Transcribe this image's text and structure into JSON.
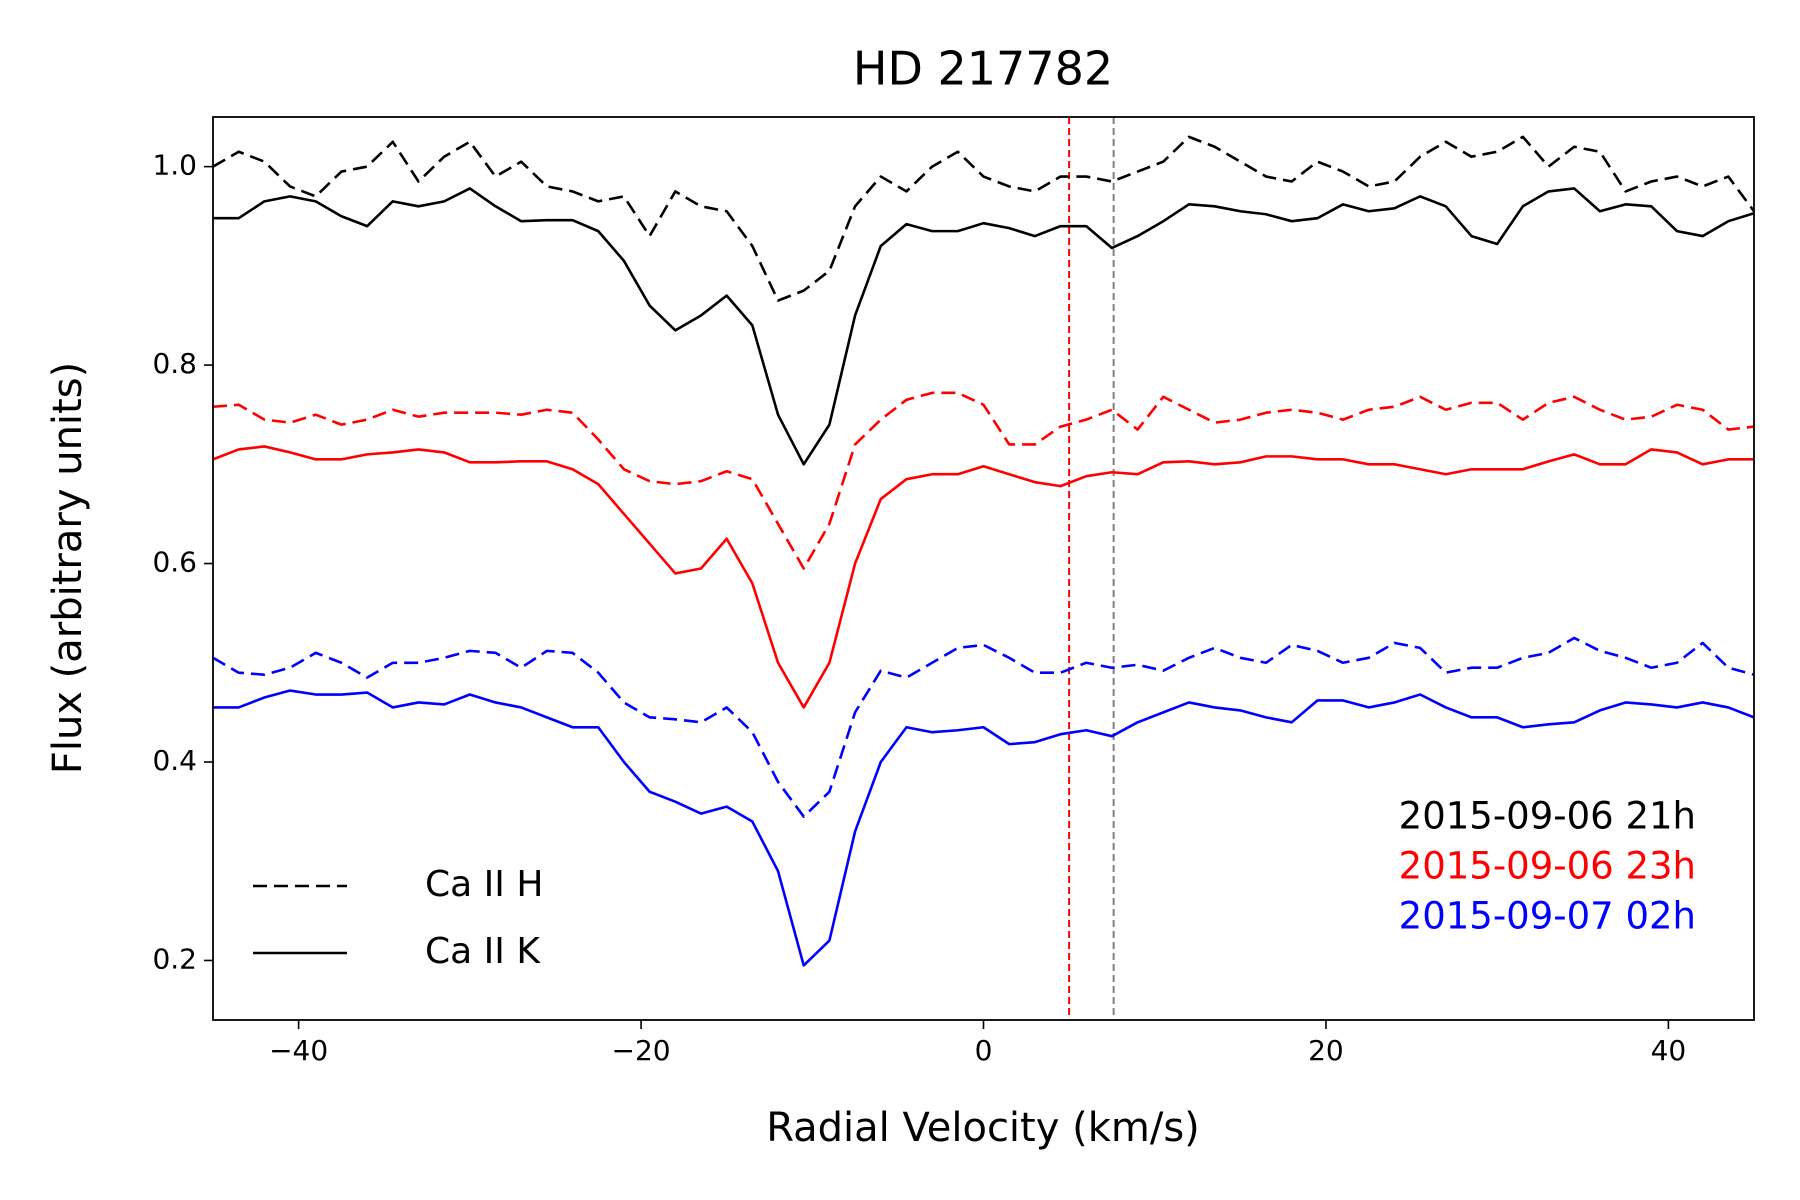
{
  "chart_data": {
    "type": "line",
    "title": "HD 217782",
    "xlabel": "Radial Velocity (km/s)",
    "ylabel": "Flux (arbitrary units)",
    "x": [
      -45,
      -43.5,
      -42,
      -40.5,
      -39,
      -37.5,
      -36,
      -34.5,
      -33,
      -31.5,
      -30,
      -28.5,
      -27,
      -25.5,
      -24,
      -22.5,
      -21,
      -19.5,
      -18,
      -16.5,
      -15,
      -13.5,
      -12,
      -10.5,
      -9,
      -7.5,
      -6,
      -4.5,
      -3,
      -1.5,
      0,
      1.5,
      3,
      4.5,
      6,
      7.5,
      9,
      10.5,
      12,
      13.5,
      15,
      16.5,
      18,
      19.5,
      21,
      22.5,
      24,
      25.5,
      27,
      28.5,
      30,
      31.5,
      33,
      34.5,
      36,
      37.5,
      39,
      40.5,
      42,
      43.5,
      45
    ],
    "series": [
      {
        "color": "black",
        "style": "dashed",
        "values": [
          1.0,
          1.015,
          1.005,
          0.98,
          0.97,
          0.995,
          1.0,
          1.025,
          0.985,
          1.01,
          1.025,
          0.99,
          1.005,
          0.98,
          0.975,
          0.965,
          0.97,
          0.93,
          0.975,
          0.96,
          0.955,
          0.92,
          0.865,
          0.875,
          0.895,
          0.96,
          0.99,
          0.975,
          1.0,
          1.015,
          0.99,
          0.98,
          0.975,
          0.99,
          0.99,
          0.985,
          0.995,
          1.005,
          1.03,
          1.02,
          1.005,
          0.99,
          0.985,
          1.005,
          0.995,
          0.98,
          0.985,
          1.01,
          1.025,
          1.01,
          1.015,
          1.03,
          1.0,
          1.02,
          1.015,
          0.975,
          0.985,
          0.99,
          0.98,
          0.99,
          0.955
        ]
      },
      {
        "color": "black",
        "style": "solid",
        "values": [
          0.948,
          0.948,
          0.965,
          0.97,
          0.965,
          0.95,
          0.94,
          0.965,
          0.96,
          0.965,
          0.978,
          0.96,
          0.945,
          0.946,
          0.946,
          0.935,
          0.905,
          0.86,
          0.835,
          0.85,
          0.87,
          0.84,
          0.75,
          0.7,
          0.74,
          0.85,
          0.92,
          0.942,
          0.935,
          0.935,
          0.943,
          0.938,
          0.93,
          0.94,
          0.94,
          0.918,
          0.93,
          0.945,
          0.962,
          0.96,
          0.955,
          0.952,
          0.945,
          0.948,
          0.962,
          0.955,
          0.958,
          0.97,
          0.96,
          0.93,
          0.922,
          0.96,
          0.975,
          0.978,
          0.955,
          0.962,
          0.96,
          0.935,
          0.93,
          0.945,
          0.953
        ]
      },
      {
        "color": "red",
        "style": "dashed",
        "values": [
          0.758,
          0.76,
          0.745,
          0.742,
          0.75,
          0.74,
          0.745,
          0.755,
          0.748,
          0.752,
          0.752,
          0.752,
          0.75,
          0.755,
          0.752,
          0.725,
          0.695,
          0.683,
          0.68,
          0.683,
          0.693,
          0.685,
          0.64,
          0.595,
          0.64,
          0.72,
          0.745,
          0.765,
          0.772,
          0.772,
          0.76,
          0.72,
          0.72,
          0.738,
          0.745,
          0.755,
          0.735,
          0.768,
          0.755,
          0.742,
          0.745,
          0.752,
          0.755,
          0.752,
          0.745,
          0.755,
          0.758,
          0.768,
          0.755,
          0.762,
          0.762,
          0.745,
          0.762,
          0.768,
          0.755,
          0.745,
          0.748,
          0.76,
          0.755,
          0.735,
          0.738
        ]
      },
      {
        "color": "red",
        "style": "solid",
        "values": [
          0.705,
          0.715,
          0.718,
          0.712,
          0.705,
          0.705,
          0.71,
          0.712,
          0.715,
          0.712,
          0.702,
          0.702,
          0.703,
          0.703,
          0.695,
          0.68,
          0.65,
          0.62,
          0.59,
          0.595,
          0.625,
          0.58,
          0.5,
          0.455,
          0.5,
          0.6,
          0.665,
          0.685,
          0.69,
          0.69,
          0.698,
          0.69,
          0.682,
          0.678,
          0.688,
          0.692,
          0.69,
          0.702,
          0.703,
          0.7,
          0.702,
          0.708,
          0.708,
          0.705,
          0.705,
          0.7,
          0.7,
          0.695,
          0.69,
          0.695,
          0.695,
          0.695,
          0.703,
          0.71,
          0.7,
          0.7,
          0.715,
          0.712,
          0.7,
          0.705,
          0.705
        ]
      },
      {
        "color": "blue",
        "style": "dashed",
        "values": [
          0.505,
          0.49,
          0.488,
          0.495,
          0.51,
          0.5,
          0.485,
          0.5,
          0.5,
          0.505,
          0.512,
          0.51,
          0.495,
          0.512,
          0.51,
          0.49,
          0.46,
          0.445,
          0.443,
          0.44,
          0.455,
          0.43,
          0.38,
          0.345,
          0.37,
          0.45,
          0.492,
          0.485,
          0.5,
          0.515,
          0.518,
          0.505,
          0.49,
          0.49,
          0.5,
          0.495,
          0.498,
          0.492,
          0.505,
          0.515,
          0.505,
          0.5,
          0.518,
          0.512,
          0.5,
          0.505,
          0.52,
          0.515,
          0.49,
          0.495,
          0.495,
          0.505,
          0.51,
          0.525,
          0.512,
          0.505,
          0.495,
          0.5,
          0.52,
          0.495,
          0.488
        ]
      },
      {
        "color": "blue",
        "style": "solid",
        "values": [
          0.455,
          0.455,
          0.465,
          0.472,
          0.468,
          0.468,
          0.47,
          0.455,
          0.46,
          0.458,
          0.468,
          0.46,
          0.455,
          0.445,
          0.435,
          0.435,
          0.4,
          0.37,
          0.36,
          0.348,
          0.355,
          0.34,
          0.29,
          0.195,
          0.22,
          0.33,
          0.4,
          0.435,
          0.43,
          0.432,
          0.435,
          0.418,
          0.42,
          0.428,
          0.432,
          0.426,
          0.44,
          0.45,
          0.46,
          0.455,
          0.452,
          0.445,
          0.44,
          0.462,
          0.462,
          0.455,
          0.46,
          0.468,
          0.455,
          0.445,
          0.445,
          0.435,
          0.438,
          0.44,
          0.452,
          0.46,
          0.458,
          0.455,
          0.46,
          0.455,
          0.445
        ]
      }
    ],
    "vlines": [
      {
        "x": 5,
        "color": "red"
      },
      {
        "x": 7.6,
        "color": "gray"
      }
    ],
    "legend": [
      {
        "label": "Ca II H",
        "style": "dashed"
      },
      {
        "label": "Ca II K",
        "style": "solid"
      }
    ],
    "legend_loc": "lower left",
    "annotations": [
      {
        "text": "2015-09-06 21h",
        "color": "black"
      },
      {
        "text": "2015-09-06 23h",
        "color": "red"
      },
      {
        "text": "2015-09-07 02h",
        "color": "blue"
      }
    ],
    "xlim": [
      -45,
      45
    ],
    "xticks": [
      {
        "value": -40,
        "label": "−40"
      },
      {
        "value": -20,
        "label": "−20"
      },
      0,
      20,
      40
    ],
    "ylim": [
      0.14,
      1.05
    ],
    "yticks": [
      0.2,
      0.4,
      0.6,
      0.8,
      {
        "value": 1,
        "label": "1.0"
      }
    ]
  }
}
